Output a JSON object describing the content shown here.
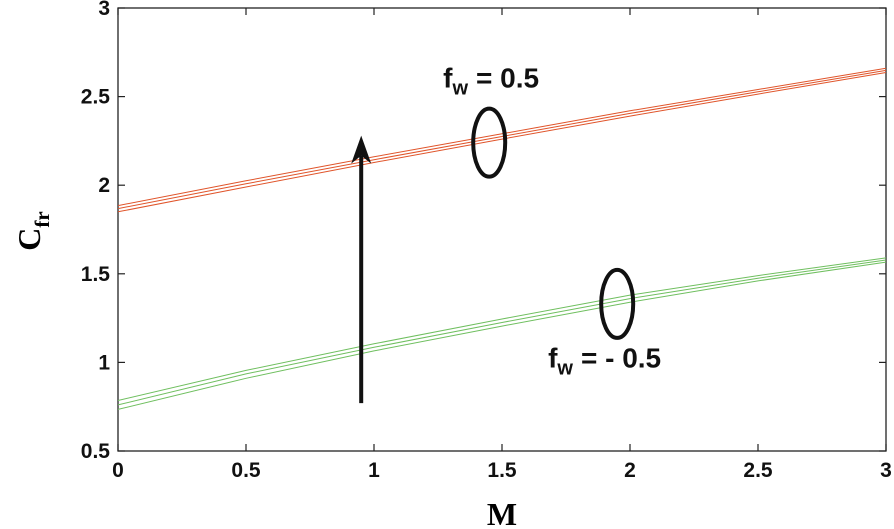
{
  "chart_data": {
    "type": "line",
    "xlabel": "M",
    "ylabel": {
      "main": "C",
      "sub": "fr"
    },
    "xlim": [
      0,
      3
    ],
    "ylim": [
      0.5,
      3
    ],
    "x_ticks": [
      "0",
      "0.5",
      "1",
      "1.5",
      "2",
      "2.5",
      "3"
    ],
    "y_ticks": [
      "0.5",
      "1",
      "1.5",
      "2",
      "2.5",
      "3"
    ],
    "grid": false,
    "series": [
      {
        "group": "upper",
        "color": "#e0542a",
        "x": [
          0,
          0.5,
          1,
          1.5,
          2,
          2.5,
          3
        ],
        "y": [
          1.885,
          2.025,
          2.16,
          2.29,
          2.42,
          2.54,
          2.66
        ]
      },
      {
        "group": "upper",
        "color": "#e0542a",
        "x": [
          0,
          0.5,
          1,
          1.5,
          2,
          2.5,
          3
        ],
        "y": [
          1.868,
          2.008,
          2.144,
          2.275,
          2.405,
          2.527,
          2.648
        ]
      },
      {
        "group": "upper",
        "color": "#e0542a",
        "x": [
          0,
          0.5,
          1,
          1.5,
          2,
          2.5,
          3
        ],
        "y": [
          1.85,
          1.99,
          2.128,
          2.26,
          2.39,
          2.514,
          2.636
        ]
      },
      {
        "group": "lower",
        "color": "#6fbf5f",
        "x": [
          0,
          0.5,
          1,
          1.5,
          2,
          2.5,
          3
        ],
        "y": [
          0.785,
          0.955,
          1.105,
          1.245,
          1.38,
          1.49,
          1.59
        ]
      },
      {
        "group": "lower",
        "color": "#6fbf5f",
        "x": [
          0,
          0.5,
          1,
          1.5,
          2,
          2.5,
          3
        ],
        "y": [
          0.76,
          0.935,
          1.085,
          1.225,
          1.36,
          1.475,
          1.578
        ]
      },
      {
        "group": "lower",
        "color": "#6fbf5f",
        "x": [
          0,
          0.5,
          1,
          1.5,
          2,
          2.5,
          3
        ],
        "y": [
          0.735,
          0.91,
          1.065,
          1.205,
          1.34,
          1.46,
          1.566
        ]
      }
    ],
    "annotations": [
      {
        "id": "upper",
        "label": "f",
        "sub": "w",
        "value": "= 0.5",
        "label_at": [
          1.27,
          2.55
        ],
        "ellipse_center": [
          1.45,
          2.24
        ]
      },
      {
        "id": "lower",
        "label": "f",
        "sub": "w",
        "value": "= - 0.5",
        "label_at": [
          1.68,
          0.97
        ],
        "ellipse_center": [
          1.95,
          1.33
        ]
      }
    ],
    "arrow": {
      "from": [
        0.95,
        0.77
      ],
      "to": [
        0.95,
        2.28
      ],
      "color": "#111111"
    }
  }
}
